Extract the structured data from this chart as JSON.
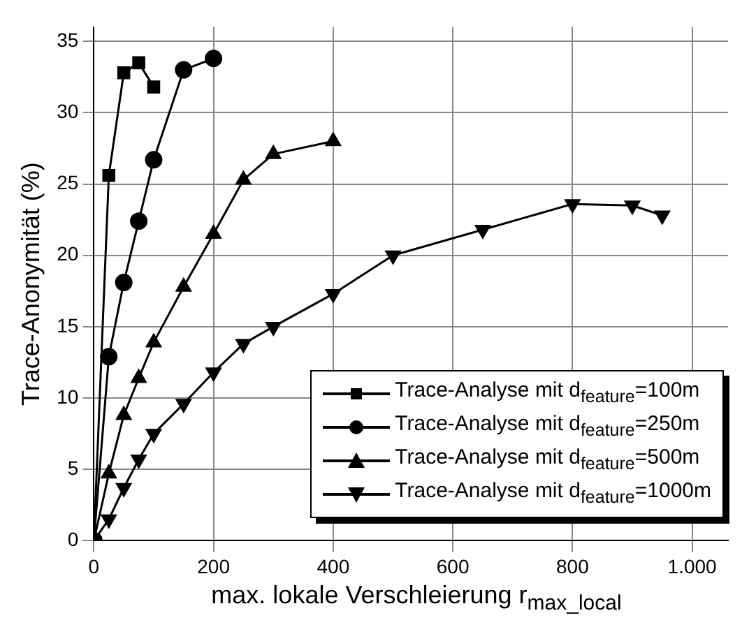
{
  "chart_data": {
    "type": "line",
    "xlabel": "max. lokale Verschleierung r$_{max_local}$",
    "ylabel": "Trace-Anonymität (%)",
    "xlim": [
      0,
      1060
    ],
    "xticks": [
      0,
      200,
      400,
      600,
      800,
      {
        "value": 1000,
        "label": "1.000"
      }
    ],
    "ylim": [
      0,
      36
    ],
    "yticks": [
      0,
      5,
      10,
      15,
      20,
      25,
      30,
      35
    ],
    "grid": true,
    "legend": "bottom right",
    "line_style": "solid",
    "series": [
      {
        "name": "Trace-Analyse mit d$_{feature}$=100m",
        "color": "#000000",
        "marker": "square",
        "x": [
          0,
          25,
          50,
          75,
          100
        ],
        "values": [
          0,
          25.6,
          32.8,
          33.5,
          31.8
        ]
      },
      {
        "name": "Trace-Analyse mit d$_{feature}$=250m",
        "color": "#000000",
        "marker": "circle",
        "x": [
          0,
          25,
          50,
          75,
          100,
          150,
          200
        ],
        "values": [
          0,
          12.9,
          18.1,
          22.4,
          26.7,
          33.0,
          33.8
        ]
      },
      {
        "name": "Trace-Analyse mit d$_{feature}$=500m",
        "color": "#000000",
        "marker": "triangle",
        "x": [
          0,
          25,
          50,
          75,
          100,
          150,
          200,
          250,
          300,
          400
        ],
        "values": [
          0,
          4.7,
          8.8,
          11.4,
          13.9,
          17.8,
          21.5,
          25.3,
          27.1,
          28.0
        ]
      },
      {
        "name": "Trace-Analyse mit d$_{feature}$=1000m",
        "color": "#000000",
        "marker": "triangle_down",
        "x": [
          0,
          25,
          50,
          75,
          100,
          150,
          200,
          250,
          300,
          400,
          500,
          650,
          800,
          900,
          950
        ],
        "values": [
          0,
          1.5,
          3.7,
          5.7,
          7.5,
          9.6,
          11.8,
          13.8,
          15.0,
          17.3,
          20.0,
          21.8,
          23.6,
          23.5,
          22.8
        ]
      }
    ]
  }
}
